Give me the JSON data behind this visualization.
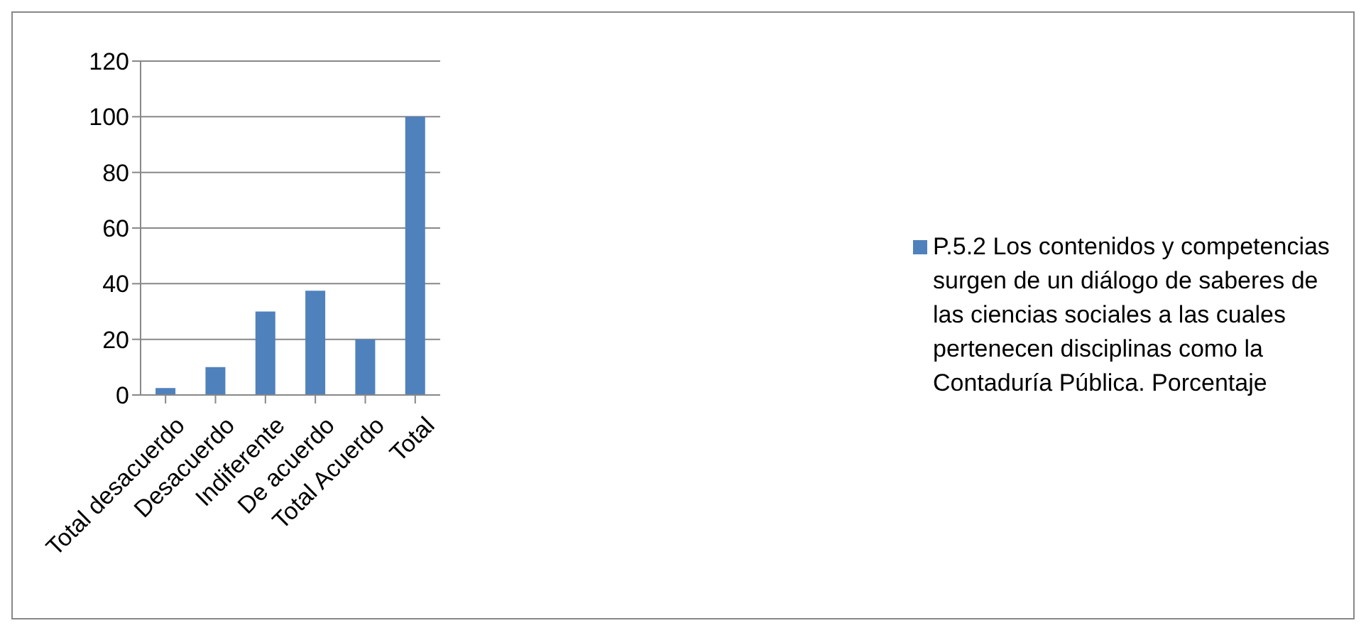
{
  "chart_data": {
    "type": "bar",
    "categories": [
      "Total desacuerdo",
      "Desacuerdo",
      "Indiferente",
      "De acuerdo",
      "Total Acuerdo",
      "Total"
    ],
    "series": [
      {
        "name": "P.5.2 Los contenidos y competencias surgen de un diálogo de saberes de las ciencias sociales a las cuales pertenecen disciplinas como la Contaduría Pública. Porcentaje",
        "color": "#4f81bd",
        "values": [
          2.5,
          10,
          30,
          37.5,
          20,
          100
        ]
      }
    ],
    "ylim": [
      0,
      120
    ],
    "yticks": [
      0,
      20,
      40,
      60,
      80,
      100,
      120
    ],
    "grid": "y",
    "legend": "right"
  }
}
